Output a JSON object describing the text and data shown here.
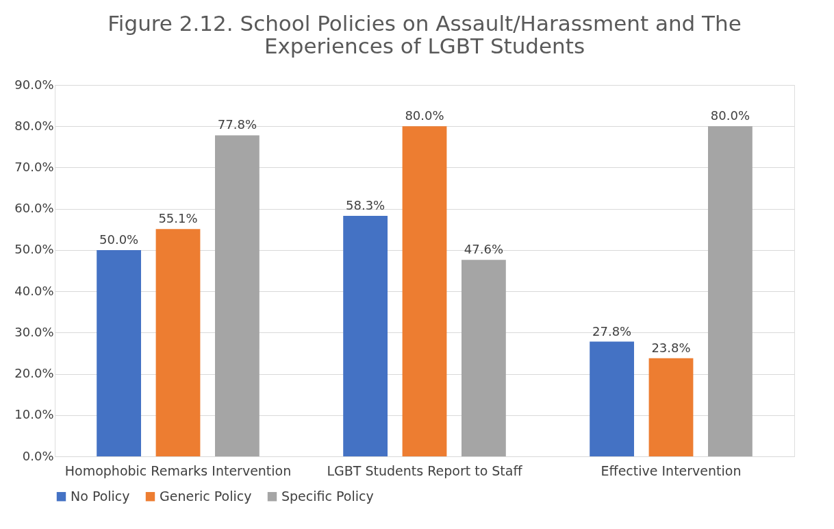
{
  "chart_data": {
    "type": "bar",
    "title": "Figure 2.12. School Policies on Assault/Harassment and The Experiences of LGBT Students",
    "categories": [
      "Homophobic Remarks Intervention",
      "LGBT Students Report to Staff",
      "Effective Intervention"
    ],
    "series": [
      {
        "name": "No Policy",
        "color": "#4472c4",
        "values": [
          50.0,
          58.3,
          27.8
        ],
        "value_labels": [
          "50.0%",
          "58.3%",
          "27.8%"
        ]
      },
      {
        "name": "Generic Policy",
        "color": "#ed7d31",
        "values": [
          55.1,
          80.0,
          23.8
        ],
        "value_labels": [
          "55.1%",
          "80.0%",
          "23.8%"
        ]
      },
      {
        "name": "Specific Policy",
        "color": "#a5a5a5",
        "values": [
          77.8,
          47.6,
          80.0
        ],
        "value_labels": [
          "77.8%",
          "47.6%",
          "80.0%"
        ]
      }
    ],
    "ylim": [
      0,
      90
    ],
    "yticks": [
      {
        "value": 0,
        "label": "0.0%"
      },
      {
        "value": 10,
        "label": "10.0%"
      },
      {
        "value": 20,
        "label": "20.0%"
      },
      {
        "value": 30,
        "label": "30.0%"
      },
      {
        "value": 40,
        "label": "40.0%"
      },
      {
        "value": 50,
        "label": "50.0%"
      },
      {
        "value": 60,
        "label": "60.0%"
      },
      {
        "value": 70,
        "label": "70.0%"
      },
      {
        "value": 80,
        "label": "80.0%"
      },
      {
        "value": 90,
        "label": "90.0%"
      }
    ],
    "grid": "y",
    "legend": "bottom"
  }
}
